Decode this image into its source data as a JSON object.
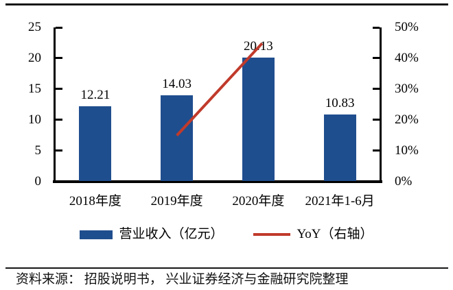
{
  "chart_data": {
    "type": "bar",
    "title": "",
    "categories": [
      "2018年度",
      "2019年度",
      "2020年度",
      "2021年1-6月"
    ],
    "series": [
      {
        "name": "营业收入（亿元）",
        "type": "bar",
        "axis": "left",
        "values": [
          12.21,
          14.03,
          20.13,
          10.83
        ]
      },
      {
        "name": "YoY（右轴）",
        "type": "line",
        "axis": "right",
        "unit": "%",
        "values": [
          null,
          14.9,
          43.5,
          null
        ]
      }
    ],
    "data_labels": [
      "12.21",
      "14.03",
      "20.13",
      "10.83"
    ],
    "left_axis": {
      "min": 0,
      "max": 25,
      "tick_values": [
        25,
        20,
        15,
        10,
        5,
        0
      ],
      "tick_labels": [
        "25",
        "20",
        "15",
        "10",
        "5",
        "0"
      ]
    },
    "right_axis": {
      "min": 0,
      "max": 50,
      "tick_values": [
        50,
        40,
        30,
        20,
        10,
        0
      ],
      "tick_labels": [
        "50%",
        "40%",
        "30%",
        "20%",
        "10%",
        "0%"
      ]
    },
    "grid": false,
    "legend_position": "bottom"
  },
  "legend": {
    "bar_label": "营业收入（亿元）",
    "line_label": "YoY（右轴）"
  },
  "source_note": "资料来源： 招股说明书， 兴业证券经济与金融研究院整理",
  "colors": {
    "bar": "#1F4E8E",
    "line": "#C03A2B",
    "axis": "#000000",
    "text": "#000000"
  }
}
